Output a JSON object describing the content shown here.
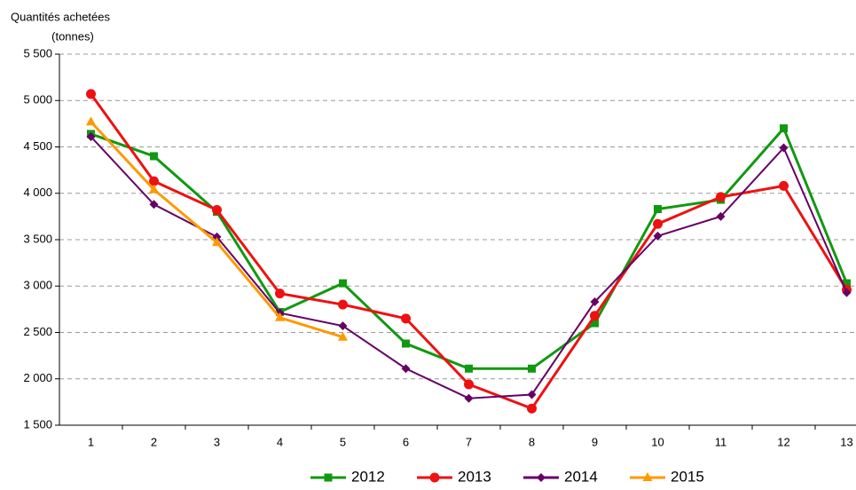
{
  "chart_data": {
    "type": "line",
    "y_label": [
      "Quantités achetées",
      "(tonnes)"
    ],
    "categories": [
      "1",
      "2",
      "3",
      "4",
      "5",
      "6",
      "7",
      "8",
      "9",
      "10",
      "11",
      "12",
      "13"
    ],
    "series": [
      {
        "name": "2012",
        "color": "#119911",
        "marker": "square",
        "values": [
          4640,
          4400,
          3800,
          2720,
          3030,
          2380,
          2110,
          2110,
          2600,
          3830,
          3930,
          4700,
          3030
        ]
      },
      {
        "name": "2013",
        "color": "#ee1111",
        "marker": "circle",
        "values": [
          5070,
          4130,
          3820,
          2920,
          2800,
          2650,
          1940,
          1680,
          2680,
          3670,
          3960,
          4080,
          2960
        ]
      },
      {
        "name": "2014",
        "color": "#660066",
        "marker": "diamond",
        "values": [
          4610,
          3880,
          3530,
          2710,
          2570,
          2110,
          1790,
          1830,
          2830,
          3540,
          3750,
          4490,
          2930
        ]
      },
      {
        "name": "2015",
        "color": "#ff9900",
        "marker": "triangle",
        "values": [
          4770,
          4040,
          3470,
          2660,
          2450,
          null,
          null,
          null,
          null,
          null,
          null,
          null,
          null
        ]
      }
    ],
    "ylim": [
      1500,
      5500
    ],
    "yticks": [
      {
        "value": 1500,
        "label": "1 500"
      },
      {
        "value": 2000,
        "label": "2 000"
      },
      {
        "value": 2500,
        "label": "2 500"
      },
      {
        "value": 3000,
        "label": "3 000"
      },
      {
        "value": 3500,
        "label": "3 500"
      },
      {
        "value": 4000,
        "label": "4 000"
      },
      {
        "value": 4500,
        "label": "4 500"
      },
      {
        "value": 5000,
        "label": "5 000"
      },
      {
        "value": 5500,
        "label": "5 500"
      }
    ],
    "grid": true,
    "legend": "bottom"
  }
}
